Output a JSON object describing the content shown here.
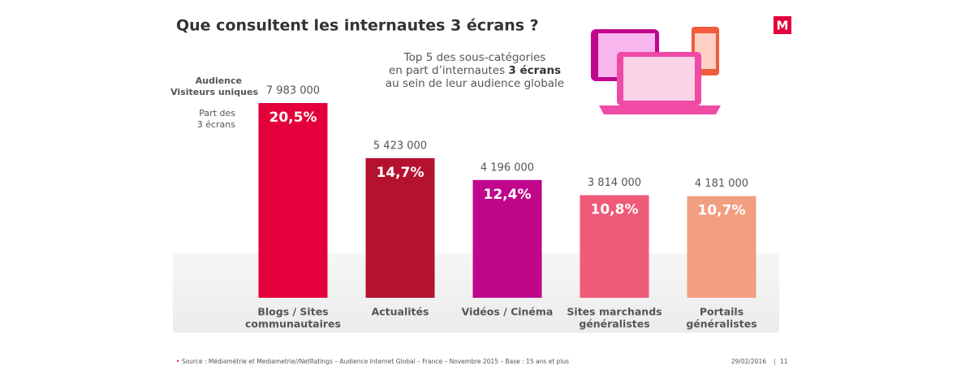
{
  "chart_data": {
    "type": "bar",
    "title": "Que consultent les internautes 3 écrans ?",
    "subtitle": {
      "line1": "Top 5 des sous-catégories",
      "line2": "en part d’internautes",
      "line2_bold": "3 écrans",
      "line3": "au sein de leur audience globale"
    },
    "audience_label": "Audience",
    "audience_sublabel": "Visiteurs uniques",
    "share_label": [
      "Part des",
      "3 écrans"
    ],
    "categories": [
      [
        "Blogs / Sites",
        "communautaires"
      ],
      [
        "Actualités"
      ],
      [
        "Vidéos / Cinéma"
      ],
      [
        "Sites marchands",
        "généralistes"
      ],
      [
        "Portails",
        "généralistes"
      ]
    ],
    "series": [
      {
        "values": [
          20.5,
          14.7,
          12.4,
          10.8,
          10.7
        ],
        "value_labels": [
          "20,5%",
          "14,7%",
          "12,4%",
          "10,8%",
          "10,7%"
        ],
        "colors": [
          "#e4003a",
          "#b5122f",
          "#c0078c",
          "#ef5a78",
          "#f29e80"
        ]
      },
      {
        "values": [
          7983000,
          5423000,
          4196000,
          3814000,
          4181000
        ],
        "value_labels": [
          "7 983 000",
          "5 423 000",
          "4 196 000",
          "3 814 000",
          "4 181 000"
        ]
      }
    ],
    "source": "Source : Médiamétrie et Mediametrie//NetRatings – Audience Internet Global – France – Novembre 2015 – Base : 15 ans et plus",
    "date": "29/02/2016",
    "page": "11",
    "logo": "M"
  }
}
